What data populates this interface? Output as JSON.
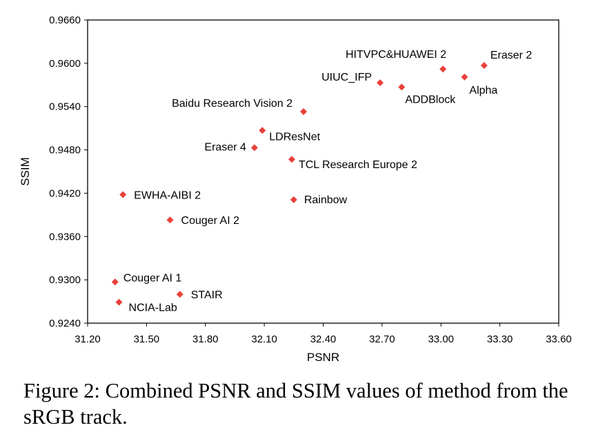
{
  "chart_data": {
    "type": "scatter",
    "title": "",
    "xlabel": "PSNR",
    "ylabel": "SSIM",
    "xlim": [
      31.2,
      33.6
    ],
    "ylim": [
      0.924,
      0.966
    ],
    "x_ticks": [
      "31.20",
      "31.50",
      "31.80",
      "32.10",
      "32.40",
      "32.70",
      "33.00",
      "33.30",
      "33.60"
    ],
    "y_ticks": [
      "0.9240",
      "0.9300",
      "0.9360",
      "0.9420",
      "0.9480",
      "0.9540",
      "0.9600",
      "0.9660"
    ],
    "grid": false,
    "marker_color": "#e8413a",
    "points": [
      {
        "label": "Eraser 2",
        "x": 33.22,
        "y": 0.9597,
        "anchor": "start",
        "dx": 9,
        "dy": -10
      },
      {
        "label": "HITVPC&HUAWEI 2",
        "x": 33.01,
        "y": 0.9592,
        "anchor": "end",
        "dx": 5,
        "dy": -16
      },
      {
        "label": "Alpha",
        "x": 33.12,
        "y": 0.9581,
        "anchor": "start",
        "dx": 7,
        "dy": 24
      },
      {
        "label": "ADDBlock",
        "x": 32.8,
        "y": 0.9567,
        "anchor": "start",
        "dx": 5,
        "dy": 23
      },
      {
        "label": "UIUC_IFP",
        "x": 32.69,
        "y": 0.9573,
        "anchor": "end",
        "dx": -12,
        "dy": -3
      },
      {
        "label": "Baidu Research Vision 2",
        "x": 32.3,
        "y": 0.9533,
        "anchor": "end",
        "dx": -16,
        "dy": -7
      },
      {
        "label": "LDResNet",
        "x": 32.09,
        "y": 0.9507,
        "anchor": "start",
        "dx": 10,
        "dy": 14
      },
      {
        "label": "Eraser 4",
        "x": 32.05,
        "y": 0.9483,
        "anchor": "end",
        "dx": -12,
        "dy": 4
      },
      {
        "label": "TCL Research Europe 2",
        "x": 32.24,
        "y": 0.9467,
        "anchor": "start",
        "dx": 10,
        "dy": 13
      },
      {
        "label": "EWHA-AIBI 2",
        "x": 31.38,
        "y": 0.9418,
        "anchor": "start",
        "dx": 16,
        "dy": 6
      },
      {
        "label": "Rainbow",
        "x": 32.25,
        "y": 0.9411,
        "anchor": "start",
        "dx": 15,
        "dy": 5
      },
      {
        "label": "Couger AI 2",
        "x": 31.62,
        "y": 0.9383,
        "anchor": "start",
        "dx": 16,
        "dy": 6
      },
      {
        "label": "Couger AI 1",
        "x": 31.34,
        "y": 0.9297,
        "anchor": "start",
        "dx": 12,
        "dy": -1
      },
      {
        "label": "STAIR",
        "x": 31.67,
        "y": 0.928,
        "anchor": "start",
        "dx": 16,
        "dy": 6
      },
      {
        "label": "NCIA-Lab",
        "x": 31.36,
        "y": 0.9269,
        "anchor": "start",
        "dx": 14,
        "dy": 13
      }
    ]
  },
  "caption": "Figure 2:  Combined PSNR and SSIM values of method from the sRGB track."
}
